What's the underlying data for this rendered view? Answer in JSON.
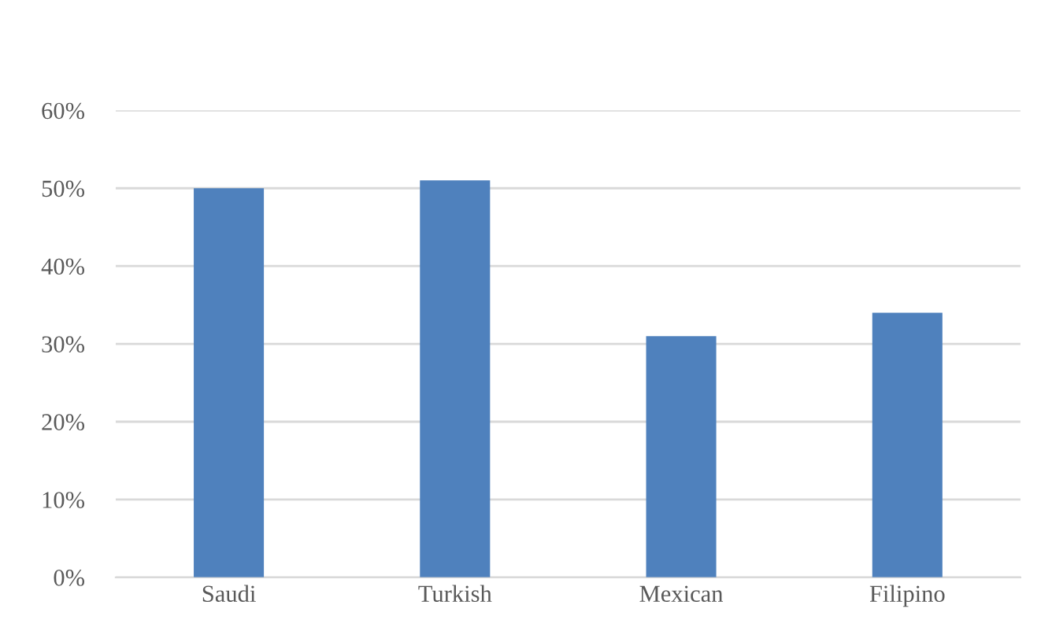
{
  "chart_data": {
    "type": "bar",
    "categories": [
      "Saudi",
      "Turkish",
      "Mexican",
      "Filipino"
    ],
    "values": [
      50,
      51,
      31,
      34
    ],
    "color": "#4f81bd",
    "ylim": [
      0,
      60
    ],
    "yticks": [
      {
        "value": 0,
        "label": "0%"
      },
      {
        "value": 10,
        "label": "10%"
      },
      {
        "value": 20,
        "label": "20%"
      },
      {
        "value": 30,
        "label": "30%"
      },
      {
        "value": 40,
        "label": "40%"
      },
      {
        "value": 50,
        "label": "50%"
      },
      {
        "value": 60,
        "label": "60%"
      }
    ],
    "grid": "y",
    "legend": false
  }
}
